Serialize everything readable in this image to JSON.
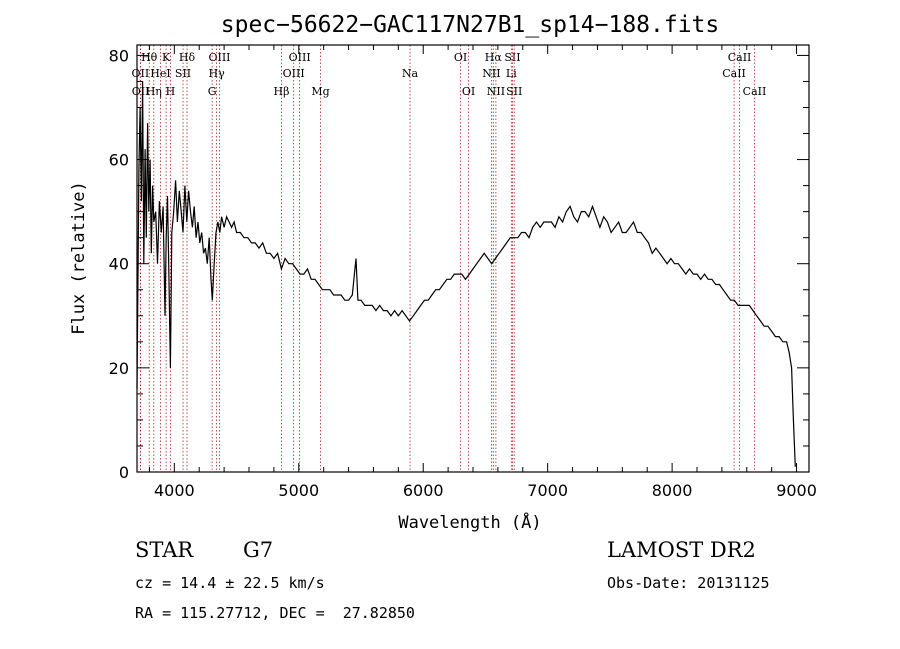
{
  "chart_data": {
    "type": "line",
    "title": "spec−56622−GAC117N27B1_sp14−188.fits",
    "xlabel": "Wavelength (Å)",
    "ylabel": "Flux (relative)",
    "xlim": [
      3700,
      9100
    ],
    "ylim": [
      0,
      82
    ],
    "x_ticks": [
      4000,
      5000,
      6000,
      7000,
      8000,
      9000
    ],
    "y_ticks": [
      0,
      20,
      40,
      60,
      80
    ],
    "grid": false,
    "series": [
      {
        "color": "#000000",
        "points": [
          [
            3700,
            16
          ],
          [
            3715,
            58
          ],
          [
            3725,
            70
          ],
          [
            3735,
            52
          ],
          [
            3745,
            75
          ],
          [
            3755,
            40
          ],
          [
            3765,
            62
          ],
          [
            3775,
            45
          ],
          [
            3785,
            67
          ],
          [
            3795,
            50
          ],
          [
            3805,
            60
          ],
          [
            3815,
            42
          ],
          [
            3825,
            55
          ],
          [
            3835,
            48
          ],
          [
            3850,
            50
          ],
          [
            3865,
            40
          ],
          [
            3880,
            52
          ],
          [
            3895,
            46
          ],
          [
            3910,
            51
          ],
          [
            3925,
            30
          ],
          [
            3935,
            45
          ],
          [
            3945,
            53
          ],
          [
            3955,
            40
          ],
          [
            3968,
            20
          ],
          [
            3980,
            46
          ],
          [
            3995,
            50
          ],
          [
            4010,
            56
          ],
          [
            4025,
            48
          ],
          [
            4040,
            54
          ],
          [
            4055,
            50
          ],
          [
            4070,
            46
          ],
          [
            4085,
            55
          ],
          [
            4100,
            48
          ],
          [
            4115,
            54
          ],
          [
            4130,
            50
          ],
          [
            4145,
            47
          ],
          [
            4160,
            51
          ],
          [
            4175,
            45
          ],
          [
            4190,
            48
          ],
          [
            4205,
            44
          ],
          [
            4220,
            46
          ],
          [
            4235,
            42
          ],
          [
            4250,
            43
          ],
          [
            4265,
            40
          ],
          [
            4280,
            45
          ],
          [
            4295,
            37
          ],
          [
            4305,
            33
          ],
          [
            4320,
            40
          ],
          [
            4335,
            46
          ],
          [
            4350,
            48
          ],
          [
            4365,
            46
          ],
          [
            4380,
            49
          ],
          [
            4400,
            47
          ],
          [
            4420,
            49
          ],
          [
            4440,
            48
          ],
          [
            4460,
            47
          ],
          [
            4480,
            48
          ],
          [
            4500,
            46
          ],
          [
            4530,
            46
          ],
          [
            4560,
            45
          ],
          [
            4590,
            45
          ],
          [
            4620,
            44
          ],
          [
            4650,
            44
          ],
          [
            4680,
            43
          ],
          [
            4710,
            44
          ],
          [
            4740,
            42
          ],
          [
            4770,
            42
          ],
          [
            4800,
            41
          ],
          [
            4830,
            42
          ],
          [
            4860,
            39
          ],
          [
            4890,
            41
          ],
          [
            4920,
            40
          ],
          [
            4950,
            40
          ],
          [
            4980,
            39
          ],
          [
            5010,
            38
          ],
          [
            5040,
            38
          ],
          [
            5070,
            39
          ],
          [
            5100,
            37
          ],
          [
            5130,
            37
          ],
          [
            5160,
            36
          ],
          [
            5190,
            35
          ],
          [
            5220,
            35
          ],
          [
            5250,
            35
          ],
          [
            5280,
            34
          ],
          [
            5310,
            34
          ],
          [
            5340,
            34
          ],
          [
            5370,
            33
          ],
          [
            5400,
            33
          ],
          [
            5430,
            34
          ],
          [
            5460,
            41
          ],
          [
            5475,
            33
          ],
          [
            5500,
            33
          ],
          [
            5530,
            32
          ],
          [
            5560,
            32
          ],
          [
            5590,
            32
          ],
          [
            5620,
            31
          ],
          [
            5650,
            32
          ],
          [
            5680,
            31
          ],
          [
            5710,
            31
          ],
          [
            5740,
            30
          ],
          [
            5770,
            31
          ],
          [
            5800,
            30
          ],
          [
            5830,
            31
          ],
          [
            5860,
            30
          ],
          [
            5890,
            29
          ],
          [
            5920,
            30
          ],
          [
            5950,
            31
          ],
          [
            5980,
            32
          ],
          [
            6010,
            33
          ],
          [
            6040,
            33
          ],
          [
            6070,
            34
          ],
          [
            6100,
            35
          ],
          [
            6130,
            35
          ],
          [
            6160,
            36
          ],
          [
            6190,
            37
          ],
          [
            6220,
            37
          ],
          [
            6250,
            38
          ],
          [
            6280,
            38
          ],
          [
            6310,
            38
          ],
          [
            6340,
            37
          ],
          [
            6370,
            38
          ],
          [
            6400,
            39
          ],
          [
            6430,
            40
          ],
          [
            6460,
            41
          ],
          [
            6490,
            42
          ],
          [
            6520,
            41
          ],
          [
            6550,
            40
          ],
          [
            6580,
            41
          ],
          [
            6610,
            42
          ],
          [
            6640,
            43
          ],
          [
            6670,
            44
          ],
          [
            6700,
            45
          ],
          [
            6730,
            45
          ],
          [
            6760,
            45
          ],
          [
            6790,
            46
          ],
          [
            6820,
            46
          ],
          [
            6850,
            45
          ],
          [
            6880,
            47
          ],
          [
            6910,
            48
          ],
          [
            6940,
            47
          ],
          [
            6970,
            48
          ],
          [
            7000,
            48
          ],
          [
            7030,
            48
          ],
          [
            7060,
            47
          ],
          [
            7090,
            49
          ],
          [
            7120,
            48
          ],
          [
            7150,
            50
          ],
          [
            7180,
            51
          ],
          [
            7210,
            49
          ],
          [
            7240,
            48
          ],
          [
            7270,
            50
          ],
          [
            7300,
            50
          ],
          [
            7330,
            49
          ],
          [
            7360,
            51
          ],
          [
            7390,
            49
          ],
          [
            7420,
            47
          ],
          [
            7450,
            49
          ],
          [
            7480,
            48
          ],
          [
            7510,
            46
          ],
          [
            7540,
            47
          ],
          [
            7570,
            48
          ],
          [
            7600,
            46
          ],
          [
            7630,
            46
          ],
          [
            7660,
            47
          ],
          [
            7690,
            48
          ],
          [
            7720,
            46
          ],
          [
            7750,
            46
          ],
          [
            7780,
            45
          ],
          [
            7810,
            44
          ],
          [
            7840,
            42
          ],
          [
            7870,
            43
          ],
          [
            7900,
            42
          ],
          [
            7930,
            41
          ],
          [
            7960,
            40
          ],
          [
            7990,
            41
          ],
          [
            8020,
            40
          ],
          [
            8050,
            40
          ],
          [
            8080,
            39
          ],
          [
            8110,
            38
          ],
          [
            8140,
            39
          ],
          [
            8170,
            38
          ],
          [
            8200,
            38
          ],
          [
            8230,
            37
          ],
          [
            8260,
            38
          ],
          [
            8290,
            37
          ],
          [
            8320,
            37
          ],
          [
            8350,
            36
          ],
          [
            8380,
            36
          ],
          [
            8410,
            35
          ],
          [
            8440,
            34
          ],
          [
            8470,
            33
          ],
          [
            8500,
            33
          ],
          [
            8530,
            32
          ],
          [
            8560,
            32
          ],
          [
            8590,
            32
          ],
          [
            8620,
            32
          ],
          [
            8650,
            31
          ],
          [
            8680,
            30
          ],
          [
            8710,
            29
          ],
          [
            8740,
            28
          ],
          [
            8770,
            28
          ],
          [
            8800,
            27
          ],
          [
            8830,
            26
          ],
          [
            8860,
            26
          ],
          [
            8890,
            25
          ],
          [
            8920,
            25
          ],
          [
            8940,
            23
          ],
          [
            8960,
            20
          ],
          [
            8975,
            10
          ],
          [
            8990,
            1
          ]
        ]
      }
    ],
    "lines": [
      {
        "label": "Hθ",
        "wl": 3798,
        "row": 0
      },
      {
        "label": "OII",
        "wl": 3727,
        "row": 1
      },
      {
        "label": "OII",
        "wl": 3729,
        "row": 2
      },
      {
        "label": "K",
        "wl": 3934,
        "row": 0
      },
      {
        "label": "HeI",
        "wl": 3889,
        "row": 1
      },
      {
        "label": "Hη",
        "wl": 3835,
        "row": 2
      },
      {
        "label": "H",
        "wl": 3969,
        "row": 2
      },
      {
        "label": "Hδ",
        "wl": 4102,
        "row": 0
      },
      {
        "label": "SII",
        "wl": 4070,
        "row": 1
      },
      {
        "label": "OIII",
        "wl": 4363,
        "row": 0
      },
      {
        "label": "Hγ",
        "wl": 4340,
        "row": 1
      },
      {
        "label": "G",
        "wl": 4304,
        "row": 2
      },
      {
        "label": "OIII",
        "wl": 5007,
        "row": 0
      },
      {
        "label": "OIII",
        "wl": 4959,
        "row": 1
      },
      {
        "label": "Hβ",
        "wl": 4861,
        "row": 2
      },
      {
        "label": "Mg",
        "wl": 5175,
        "row": 2
      },
      {
        "label": "Na",
        "wl": 5894,
        "row": 1
      },
      {
        "label": "OI",
        "wl": 6300,
        "row": 0
      },
      {
        "label": "OI",
        "wl": 6364,
        "row": 2
      },
      {
        "label": "Hα",
        "wl": 6563,
        "row": 0
      },
      {
        "label": "SII",
        "wl": 6717,
        "row": 0
      },
      {
        "label": "NII",
        "wl": 6548,
        "row": 1
      },
      {
        "label": "Li",
        "wl": 6708,
        "row": 1
      },
      {
        "label": "NII",
        "wl": 6584,
        "row": 2
      },
      {
        "label": "SII",
        "wl": 6731,
        "row": 2
      },
      {
        "label": "CaII",
        "wl": 8542,
        "row": 0
      },
      {
        "label": "CaII",
        "wl": 8498,
        "row": 1
      },
      {
        "label": "CaII",
        "wl": 8662,
        "row": 2
      }
    ]
  },
  "info": {
    "class_label": "STAR",
    "subclass": "G7",
    "survey": "LAMOST DR2",
    "cz": "cz = 14.4 ± 22.5 km/s",
    "obs_date": "Obs-Date: 20131125",
    "coords": "RA = 115.27712, DEC =  27.82850"
  }
}
